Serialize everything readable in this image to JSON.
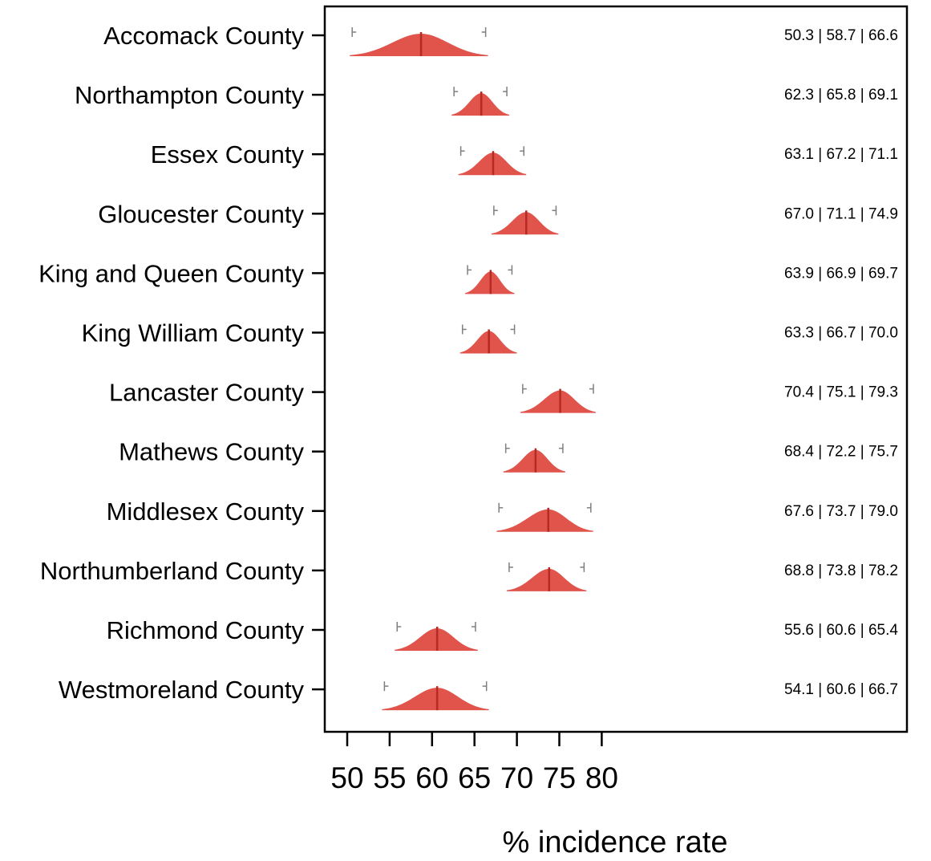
{
  "chart_data": {
    "type": "ridgeline",
    "xlabel": "% incidence rate",
    "xlim": [
      48.5,
      82.0
    ],
    "xticks": [
      50,
      55,
      60,
      65,
      70,
      75,
      80
    ],
    "xtick_labels": [
      "50",
      "55",
      "60",
      "65",
      "70",
      "75",
      "80"
    ],
    "series_color": "#e0544c",
    "median_color": "#b52a22",
    "whisker_color": "#7f7f7f",
    "grid": false,
    "categories": [
      "Accomack County",
      "Northampton County",
      "Essex County",
      "Gloucester County",
      "King and Queen County",
      "King William County",
      "Lancaster County",
      "Mathews County",
      "Middlesex County",
      "Northumberland County",
      "Richmond County",
      "Westmoreland County"
    ],
    "lower": [
      50.3,
      62.3,
      63.1,
      67.0,
      63.9,
      63.3,
      70.4,
      68.4,
      67.6,
      68.8,
      55.6,
      54.1
    ],
    "median": [
      58.7,
      65.8,
      67.2,
      71.1,
      66.9,
      66.7,
      75.1,
      72.2,
      73.7,
      73.8,
      60.6,
      60.6
    ],
    "upper": [
      66.6,
      69.1,
      71.1,
      74.9,
      69.7,
      70.0,
      79.3,
      75.7,
      79.0,
      78.2,
      65.4,
      66.7
    ],
    "value_labels": [
      "50.3 | 58.7 | 66.6",
      "62.3 | 65.8 | 69.1",
      "63.1 | 67.2 | 71.1",
      "67.0 | 71.1 | 74.9",
      "63.9 | 66.9 | 69.7",
      "63.3 | 66.7 | 70.0",
      "70.4 | 75.1 | 79.3",
      "68.4 | 72.2 | 75.7",
      "67.6 | 73.7 | 79.0",
      "68.8 | 73.8 | 78.2",
      "55.6 | 60.6 | 65.4",
      "54.1 | 60.6 | 66.7"
    ]
  }
}
